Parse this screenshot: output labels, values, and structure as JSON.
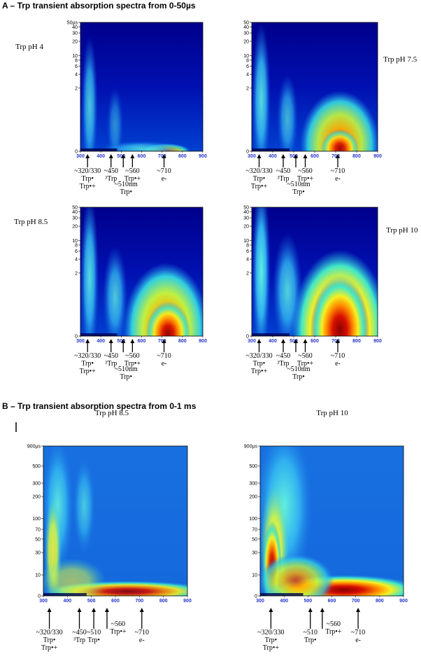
{
  "sections": [
    {
      "title": "A – Trp transient absorption spectra from 0-50µs",
      "panels": [
        {
          "label": "Trp pH 4",
          "xticks": [
            300,
            400,
            500,
            600,
            700,
            800,
            900
          ],
          "yticks": [
            0,
            2,
            4,
            6,
            8,
            10,
            20,
            30,
            40,
            {
              "value": 50,
              "label": "50µs"
            }
          ],
          "annotations": [
            {
              "lines": [
                "~320/330",
                "Trp•",
                "Trp•+"
              ]
            },
            {
              "lines": [
                "~450",
                "³Trp"
              ]
            },
            {
              "lines": [
                "~510nm",
                "Trp•"
              ]
            },
            {
              "lines": [
                "~560",
                "Trp•+"
              ]
            },
            {
              "lines": [
                "~710",
                "e-"
              ]
            }
          ]
        },
        {
          "label": "Trp pH 7.5",
          "xticks": [
            300,
            400,
            500,
            600,
            700,
            800,
            900
          ],
          "yticks": [
            0,
            2,
            4,
            6,
            8,
            10,
            20,
            30,
            40,
            50
          ],
          "annotations": [
            {
              "lines": [
                "~320/330",
                "Trp•",
                "Trp•+"
              ]
            },
            {
              "lines": [
                "~450",
                "³Trp"
              ]
            },
            {
              "lines": [
                "~510nm",
                "Trp•"
              ]
            },
            {
              "lines": [
                "~560",
                "Trp•+"
              ]
            },
            {
              "lines": [
                "~710",
                "e-"
              ]
            }
          ]
        },
        {
          "label": "Trp pH 8.5",
          "xticks": [
            300,
            400,
            500,
            600,
            700,
            800,
            900
          ],
          "yticks": [
            0,
            2,
            4,
            6,
            8,
            10,
            20,
            30,
            40,
            50
          ],
          "annotations": [
            {
              "lines": [
                "~320/330",
                "Trp•",
                "Trp•+"
              ]
            },
            {
              "lines": [
                "~450",
                "³Trp"
              ]
            },
            {
              "lines": [
                "~510nm",
                "Trp•"
              ]
            },
            {
              "lines": [
                "~560",
                "Trp•+"
              ]
            },
            {
              "lines": [
                "~710",
                "e-"
              ]
            }
          ]
        },
        {
          "label": "Trp pH 10",
          "xticks": [
            300,
            400,
            500,
            600,
            700,
            800,
            900
          ],
          "yticks": [
            0,
            2,
            4,
            6,
            8,
            10,
            20,
            30,
            40,
            50
          ],
          "annotations": [
            {
              "lines": [
                "~320/330",
                "Trp•",
                "Trp•+"
              ]
            },
            {
              "lines": [
                "~450",
                "³Trp"
              ]
            },
            {
              "lines": [
                "~510nm",
                "Trp•"
              ]
            },
            {
              "lines": [
                "~560",
                "Trp•+"
              ]
            },
            {
              "lines": [
                "~710",
                "e-"
              ]
            }
          ]
        }
      ]
    },
    {
      "title": "B – Trp transient absorption spectra from 0-1 ms",
      "panels": [
        {
          "label": "Trp pH 8.5",
          "xticks": [
            300,
            400,
            500,
            600,
            700,
            800,
            900
          ],
          "yticks": [
            0,
            10,
            30,
            50,
            70,
            100,
            200,
            300,
            500,
            {
              "value": 900,
              "label": "900µs"
            }
          ],
          "annotations": [
            {
              "lines": [
                "~320/330",
                "Trp•",
                "Trp•+"
              ]
            },
            {
              "lines": [
                "~450",
                "³Trp"
              ]
            },
            {
              "lines": [
                "~510",
                "Trp•"
              ]
            },
            {
              "lines": [
                "~560",
                "Trp•+"
              ]
            },
            {
              "lines": [
                "~710",
                "e-"
              ]
            }
          ]
        },
        {
          "label": "Trp pH 10",
          "xticks": [
            300,
            400,
            500,
            600,
            700,
            800,
            900
          ],
          "yticks": [
            0,
            10,
            30,
            50,
            70,
            100,
            200,
            300,
            500,
            {
              "value": 900,
              "label": "900µs"
            }
          ],
          "annotations": [
            {
              "lines": [
                "~320/330",
                "Trp•",
                "Trp•+"
              ]
            },
            {
              "lines": [
                "~510",
                "Trp•"
              ]
            },
            {
              "lines": [
                "~560",
                "Trp•+"
              ]
            },
            {
              "lines": [
                "~710",
                "e-"
              ]
            }
          ]
        }
      ]
    }
  ]
}
